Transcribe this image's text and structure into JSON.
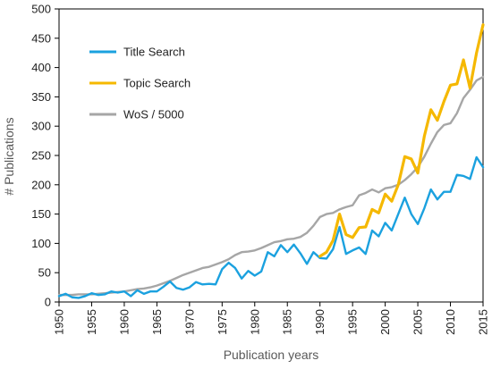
{
  "chart_data": {
    "type": "line",
    "xlabel": "Publication years",
    "ylabel": "# Publications",
    "xlim": [
      1950,
      2015
    ],
    "ylim": [
      0,
      500
    ],
    "x_ticks": [
      1950,
      1955,
      1960,
      1965,
      1970,
      1975,
      1980,
      1985,
      1990,
      1995,
      2000,
      2005,
      2010,
      2015
    ],
    "y_ticks": [
      0,
      50,
      100,
      150,
      200,
      250,
      300,
      350,
      400,
      450,
      500
    ],
    "grid": false,
    "legend_position": "top-left",
    "series": [
      {
        "name": "Title Search",
        "color": "#1BA1DF",
        "x": [
          1950,
          1951,
          1952,
          1953,
          1954,
          1955,
          1956,
          1957,
          1958,
          1959,
          1960,
          1961,
          1962,
          1963,
          1964,
          1965,
          1966,
          1967,
          1968,
          1969,
          1970,
          1971,
          1972,
          1973,
          1974,
          1975,
          1976,
          1977,
          1978,
          1979,
          1980,
          1981,
          1982,
          1983,
          1984,
          1985,
          1986,
          1987,
          1988,
          1989,
          1990,
          1991,
          1992,
          1993,
          1994,
          1995,
          1996,
          1997,
          1998,
          1999,
          2000,
          2001,
          2002,
          2003,
          2004,
          2005,
          2006,
          2007,
          2008,
          2009,
          2010,
          2011,
          2012,
          2013,
          2014,
          2015
        ],
        "values": [
          10,
          14,
          8,
          7,
          10,
          15,
          12,
          13,
          18,
          16,
          18,
          10,
          20,
          14,
          18,
          18,
          26,
          35,
          24,
          21,
          25,
          34,
          30,
          31,
          30,
          56,
          67,
          58,
          40,
          53,
          45,
          52,
          85,
          78,
          97,
          85,
          98,
          83,
          65,
          85,
          75,
          74,
          90,
          128,
          82,
          88,
          93,
          82,
          122,
          112,
          135,
          122,
          150,
          178,
          150,
          133,
          160,
          192,
          175,
          188,
          188,
          217,
          215,
          210,
          247,
          230
        ]
      },
      {
        "name": "Topic Search",
        "color": "#F5B800",
        "x": [
          1990,
          1991,
          1992,
          1993,
          1994,
          1995,
          1996,
          1997,
          1998,
          1999,
          2000,
          2001,
          2002,
          2003,
          2004,
          2005,
          2006,
          2007,
          2008,
          2009,
          2010,
          2011,
          2012,
          2013,
          2014,
          2015
        ],
        "values": [
          78,
          85,
          105,
          150,
          115,
          110,
          127,
          128,
          158,
          152,
          184,
          172,
          200,
          248,
          244,
          220,
          283,
          328,
          310,
          342,
          370,
          372,
          413,
          365,
          425,
          473
        ]
      },
      {
        "name": "WoS / 5000",
        "color": "#A6A6A6",
        "x": [
          1950,
          1951,
          1952,
          1953,
          1954,
          1955,
          1956,
          1957,
          1958,
          1959,
          1960,
          1961,
          1962,
          1963,
          1964,
          1965,
          1966,
          1967,
          1968,
          1969,
          1970,
          1971,
          1972,
          1973,
          1974,
          1975,
          1976,
          1977,
          1978,
          1979,
          1980,
          1981,
          1982,
          1983,
          1984,
          1985,
          1986,
          1987,
          1988,
          1989,
          1990,
          1991,
          1992,
          1993,
          1994,
          1995,
          1996,
          1997,
          1998,
          1999,
          2000,
          2001,
          2002,
          2003,
          2004,
          2005,
          2006,
          2007,
          2008,
          2009,
          2010,
          2011,
          2012,
          2013,
          2014,
          2015
        ],
        "values": [
          12,
          12,
          12,
          13,
          13,
          13,
          14,
          15,
          16,
          17,
          18,
          20,
          22,
          23,
          25,
          28,
          32,
          36,
          41,
          46,
          50,
          54,
          58,
          60,
          64,
          68,
          73,
          80,
          85,
          86,
          88,
          92,
          97,
          102,
          104,
          107,
          108,
          111,
          118,
          130,
          145,
          150,
          152,
          158,
          162,
          165,
          182,
          186,
          192,
          187,
          194,
          196,
          200,
          208,
          218,
          230,
          248,
          270,
          290,
          302,
          305,
          322,
          348,
          362,
          378,
          384
        ]
      }
    ]
  }
}
